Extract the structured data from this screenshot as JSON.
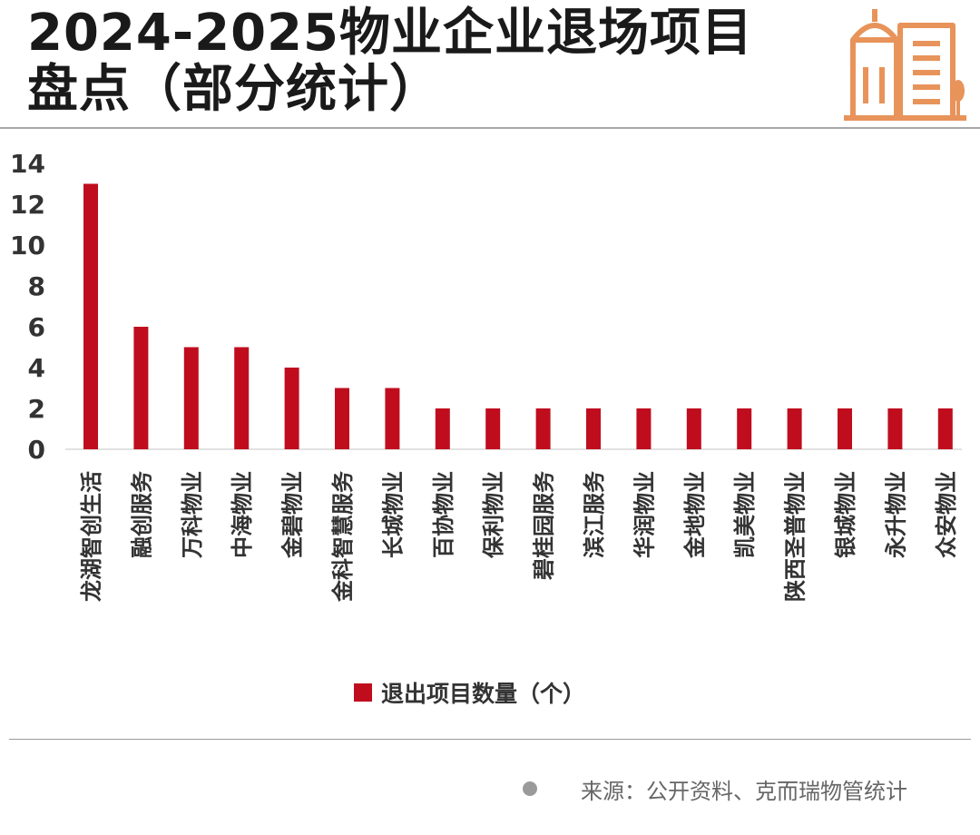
{
  "title_line1": "2024-2025物业企业退场项目",
  "title_line2": "盘点（部分统计）",
  "source": "来源：公开资料、克而瑞物管统计",
  "colors": {
    "bar": "#c00d1e",
    "logo": "#e8935a",
    "rule": "#a8a8a8"
  },
  "chart_data": {
    "type": "bar",
    "categories": [
      "龙湖智创生活",
      "融创服务",
      "万科物业",
      "中海物业",
      "金碧物业",
      "金科智慧服务",
      "长城物业",
      "百协物业",
      "保利物业",
      "碧桂园服务",
      "滨江服务",
      "华润物业",
      "金地物业",
      "凯美物业",
      "陕西圣普物业",
      "银城物业",
      "永升物业",
      "众安物业"
    ],
    "series": [
      {
        "name": "退出项目数量（个）",
        "values": [
          13,
          6,
          5,
          5,
          4,
          3,
          3,
          2,
          2,
          2,
          2,
          2,
          2,
          2,
          2,
          2,
          2,
          2
        ]
      }
    ],
    "xlabel": "",
    "ylabel": "",
    "ylim": [
      0,
      14
    ],
    "yticks": [
      0,
      2,
      4,
      6,
      8,
      10,
      12,
      14
    ],
    "grid": false,
    "legend": "bottom"
  }
}
